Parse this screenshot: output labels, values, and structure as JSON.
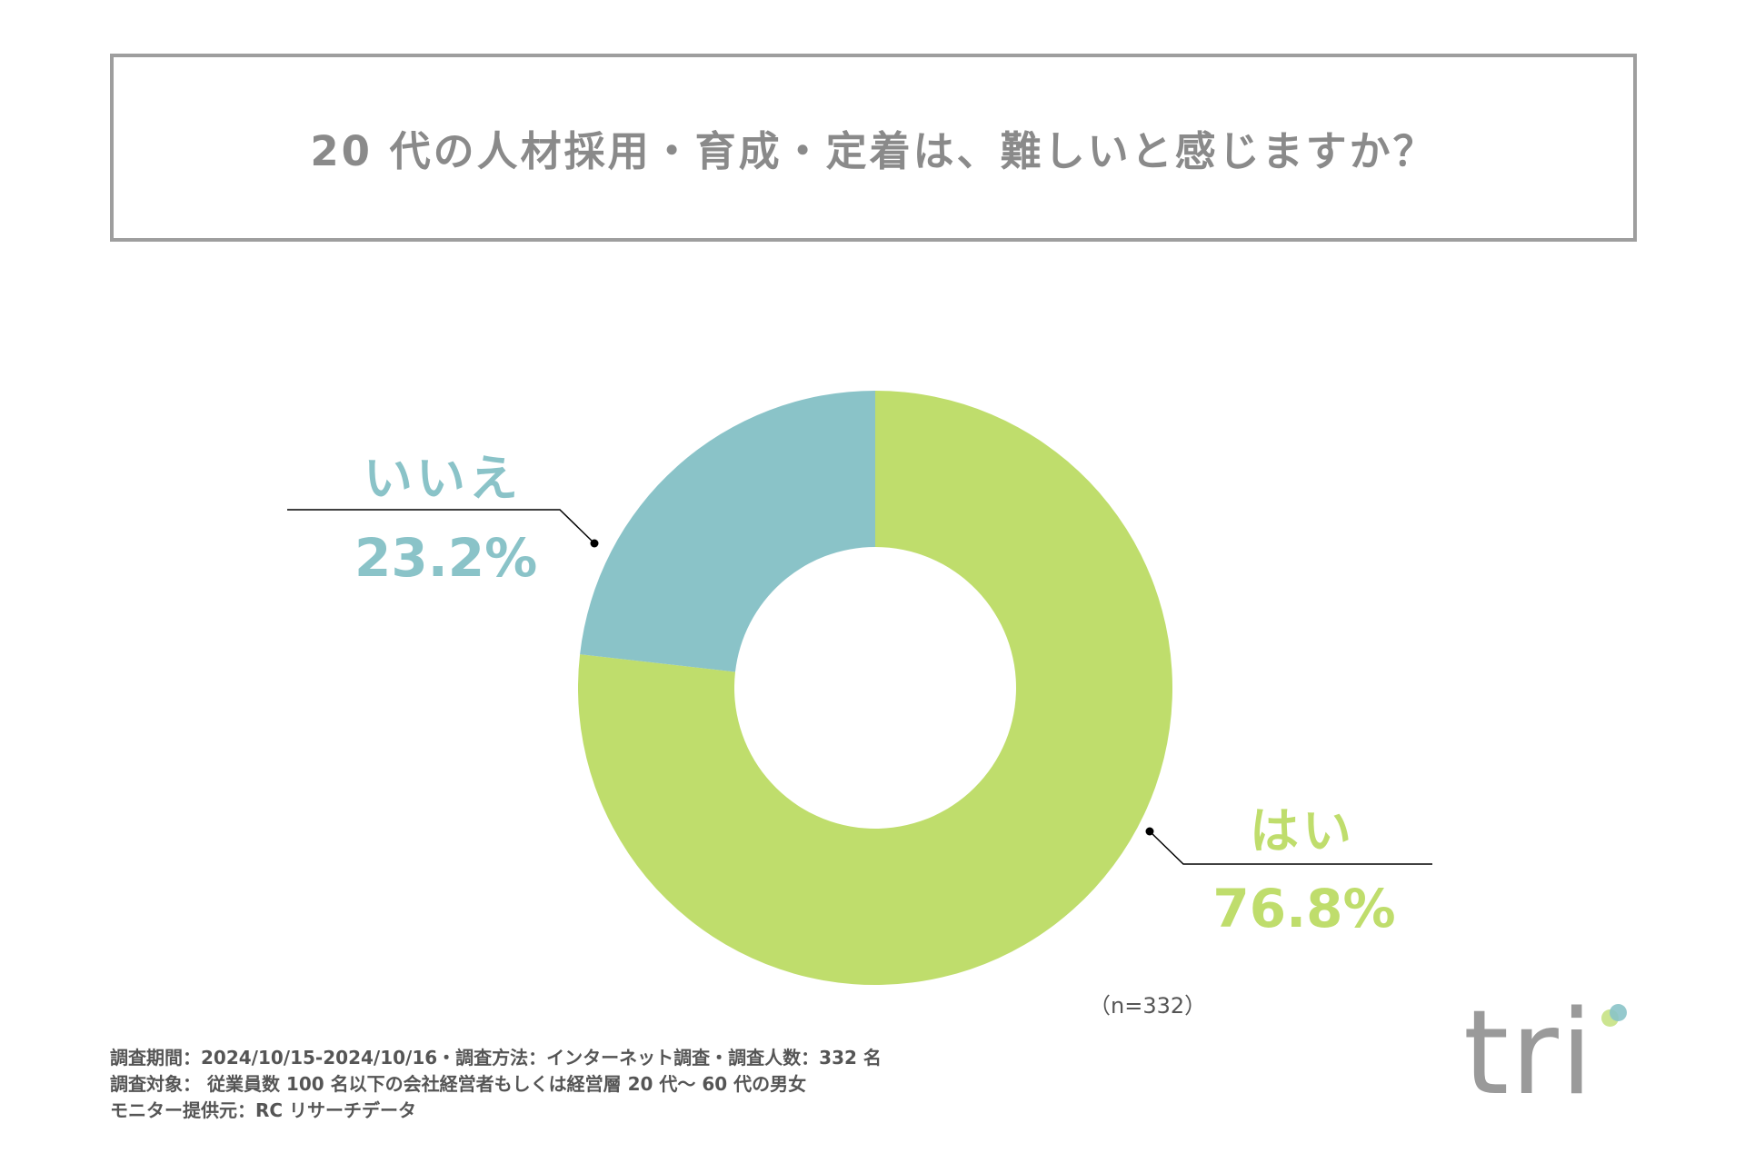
{
  "title": "20 代の人材採用・育成・定着は、難しいと感じますか？",
  "chart_data": {
    "type": "pie",
    "title": "20 代の人材採用・育成・定着は、難しいと感じますか？",
    "categories": [
      "はい",
      "いいえ"
    ],
    "values": [
      76.8,
      23.2
    ],
    "value_labels": [
      "76.8%",
      "23.2%"
    ],
    "colors": [
      "#bfdd6c",
      "#8ac3c8"
    ],
    "donut": true,
    "sample_size": "（n=332）"
  },
  "footnotes": [
    "調査期間：2024/10/15-2024/10/16・調査方法：インターネット調査・調査人数：332 名",
    "調査対象： 従業員数 100 名以下の会社経営者もしくは経営層 20 代～ 60 代の男女",
    "モニター提供元：RC リサーチデータ"
  ],
  "logo": "tri"
}
